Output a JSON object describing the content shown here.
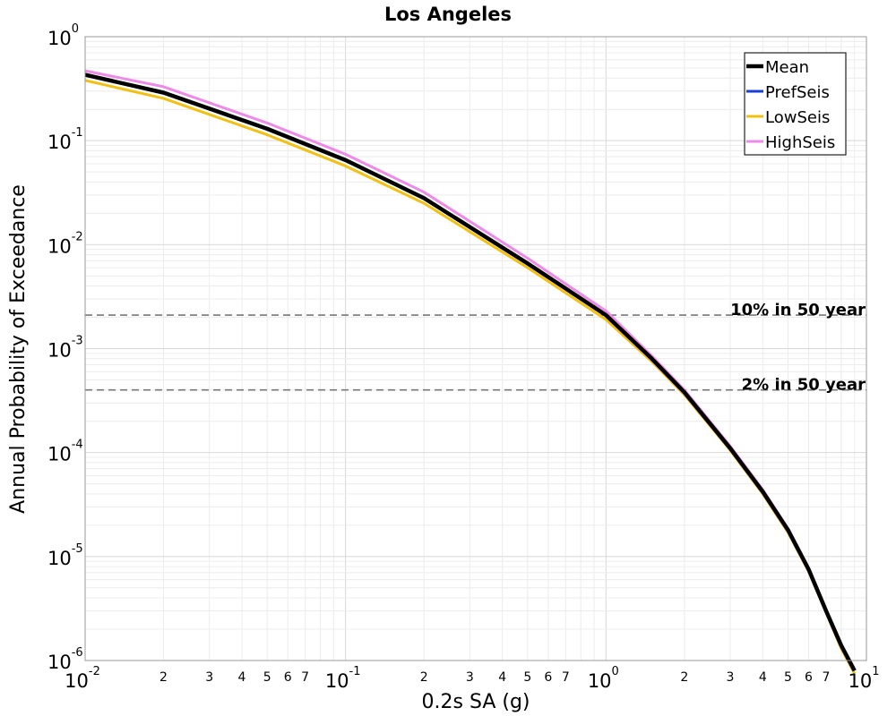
{
  "chart_data": {
    "type": "line",
    "title": "Los Angeles",
    "xlabel": "0.2s SA (g)",
    "ylabel": "Annual Probability of Exceedance",
    "x_scale": "log",
    "y_scale": "log",
    "xlim": [
      0.01,
      10
    ],
    "ylim": [
      1e-06,
      1
    ],
    "grid": true,
    "legend_position": "top-right",
    "x_decade_labels": [
      {
        "base": "10",
        "exp": "-2",
        "value": 0.01
      },
      {
        "base": "10",
        "exp": "-1",
        "value": 0.1
      },
      {
        "base": "10",
        "exp": "0",
        "value": 1
      },
      {
        "base": "10",
        "exp": "1",
        "value": 10
      }
    ],
    "x_minor_labels": [
      {
        "label": "2",
        "value": 0.02
      },
      {
        "label": "3",
        "value": 0.03
      },
      {
        "label": "4",
        "value": 0.04
      },
      {
        "label": "5",
        "value": 0.05
      },
      {
        "label": "6",
        "value": 0.06
      },
      {
        "label": "7",
        "value": 0.07
      },
      {
        "label": "2",
        "value": 0.2
      },
      {
        "label": "3",
        "value": 0.3
      },
      {
        "label": "4",
        "value": 0.4
      },
      {
        "label": "5",
        "value": 0.5
      },
      {
        "label": "6",
        "value": 0.6
      },
      {
        "label": "7",
        "value": 0.7
      },
      {
        "label": "2",
        "value": 2
      },
      {
        "label": "3",
        "value": 3
      },
      {
        "label": "4",
        "value": 4
      },
      {
        "label": "5",
        "value": 5
      },
      {
        "label": "6",
        "value": 6
      },
      {
        "label": "7",
        "value": 7
      }
    ],
    "y_decade_labels": [
      {
        "base": "10",
        "exp": "0",
        "value": 1
      },
      {
        "base": "10",
        "exp": "-1",
        "value": 0.1
      },
      {
        "base": "10",
        "exp": "-2",
        "value": 0.01
      },
      {
        "base": "10",
        "exp": "-3",
        "value": 0.001
      },
      {
        "base": "10",
        "exp": "-4",
        "value": 0.0001
      },
      {
        "base": "10",
        "exp": "-5",
        "value": 1e-05
      },
      {
        "base": "10",
        "exp": "-6",
        "value": 1e-06
      }
    ],
    "reference_lines": [
      {
        "label": "10% in 50 year",
        "y": 0.0021
      },
      {
        "label": "2% in 50 year",
        "y": 0.0004
      }
    ],
    "series": [
      {
        "name": "PrefSeis",
        "color": "#1a3fd6",
        "x": [
          0.01,
          0.02,
          0.05,
          0.1,
          0.2,
          0.5,
          1.0,
          1.5,
          2.0,
          3.0,
          4.0,
          5.0,
          6.0,
          7.0,
          8.0,
          9.0
        ],
        "y": [
          0.43,
          0.29,
          0.13,
          0.065,
          0.028,
          0.0066,
          0.0021,
          0.0008,
          0.00038,
          0.00011,
          4.2e-05,
          1.8e-05,
          7.5e-06,
          3e-06,
          1.4e-06,
          8e-07
        ]
      },
      {
        "name": "LowSeis",
        "color": "#f2c010",
        "x": [
          0.01,
          0.02,
          0.05,
          0.1,
          0.2,
          0.5,
          1.0,
          1.5,
          2.0,
          3.0,
          4.0,
          5.0,
          6.0,
          7.0,
          8.0,
          9.0
        ],
        "y": [
          0.38,
          0.255,
          0.114,
          0.057,
          0.025,
          0.006,
          0.0019,
          0.00075,
          0.00036,
          0.000105,
          4e-05,
          1.7e-05,
          7.2e-06,
          2.9e-06,
          1.3e-06,
          7.5e-07
        ]
      },
      {
        "name": "HighSeis",
        "color": "#ee8ae8",
        "x": [
          0.01,
          0.02,
          0.05,
          0.1,
          0.2,
          0.5,
          1.0,
          1.5,
          2.0,
          3.0,
          4.0,
          5.0,
          6.0,
          7.0,
          8.0,
          9.0
        ],
        "y": [
          0.47,
          0.33,
          0.148,
          0.074,
          0.032,
          0.0074,
          0.0023,
          0.00085,
          0.0004,
          0.000115,
          4.4e-05,
          1.85e-05,
          7.8e-06,
          3.1e-06,
          1.4e-06,
          8e-07
        ]
      },
      {
        "name": "Mean",
        "color": "#000000",
        "x": [
          0.01,
          0.02,
          0.05,
          0.1,
          0.2,
          0.5,
          1.0,
          1.5,
          2.0,
          3.0,
          4.0,
          5.0,
          6.0,
          7.0,
          8.0,
          9.0
        ],
        "y": [
          0.43,
          0.29,
          0.13,
          0.065,
          0.028,
          0.0066,
          0.0021,
          0.0008,
          0.00038,
          0.00011,
          4.2e-05,
          1.8e-05,
          7.5e-06,
          3e-06,
          1.4e-06,
          8e-07
        ]
      }
    ],
    "legend_order": [
      "Mean",
      "PrefSeis",
      "LowSeis",
      "HighSeis"
    ]
  }
}
